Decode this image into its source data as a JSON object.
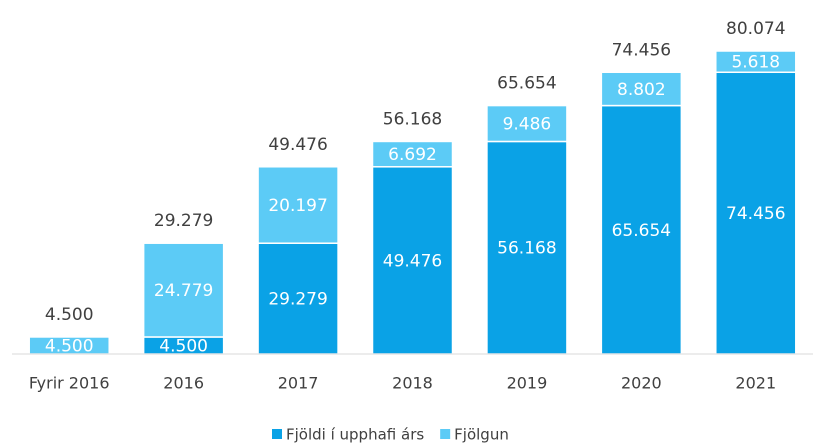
{
  "chart_data": {
    "type": "stacked_bar",
    "categories": [
      "Fyrir 2016",
      "2016",
      "2017",
      "2018",
      "2019",
      "2020",
      "2021"
    ],
    "series": [
      {
        "name": "Fjöldi í upphafi árs",
        "color": "#0aa2e6",
        "values": [
          null,
          4500,
          29279,
          49476,
          56168,
          65654,
          74456
        ],
        "value_labels": [
          null,
          "4.500",
          "29.279",
          "49.476",
          "56.168",
          "65.654",
          "74.456"
        ]
      },
      {
        "name": "Fjölgun",
        "color": "#5ccbf6",
        "values": [
          4500,
          24779,
          20197,
          6692,
          9486,
          8802,
          5618
        ],
        "value_labels": [
          "4.500",
          "24.779",
          "20.197",
          "6.692",
          "9.486",
          "8.802",
          "5.618"
        ]
      }
    ],
    "totals": {
      "values": [
        4500,
        29279,
        49476,
        56168,
        65654,
        74456,
        80074
      ],
      "value_labels": [
        "4.500",
        "29.279",
        "49.476",
        "56.168",
        "65.654",
        "74.456",
        "80.074"
      ]
    },
    "legend": "bottom"
  }
}
